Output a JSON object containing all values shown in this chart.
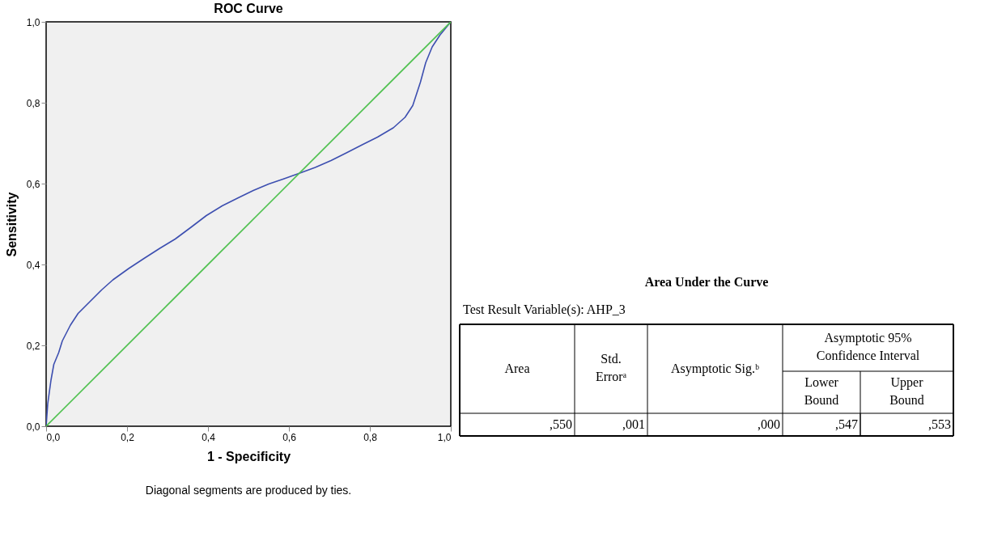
{
  "chart_data": [
    {
      "type": "line",
      "title": "ROC Curve",
      "xlabel": "1 - Specificity",
      "ylabel": "Sensitivity",
      "xlim": [
        0,
        1
      ],
      "ylim": [
        0,
        1
      ],
      "xticks": [
        {
          "value": 0,
          "label": "0,0"
        },
        {
          "value": 0.2,
          "label": "0,2"
        },
        {
          "value": 0.4,
          "label": "0,4"
        },
        {
          "value": 0.6,
          "label": "0,6"
        },
        {
          "value": 0.8,
          "label": "0,8"
        },
        {
          "value": 1,
          "label": "1,0"
        }
      ],
      "yticks": [
        {
          "value": 0,
          "label": "0,0"
        },
        {
          "value": 0.2,
          "label": "0,2"
        },
        {
          "value": 0.4,
          "label": "0,4"
        },
        {
          "value": 0.6,
          "label": "0,6"
        },
        {
          "value": 0.8,
          "label": "0,8"
        },
        {
          "value": 1,
          "label": "1,0"
        }
      ],
      "grid": false,
      "line_style": "solid",
      "series": [
        {
          "color": "#3d4fb0",
          "x": [
            0,
            0.004,
            0.012,
            0.019,
            0.031,
            0.04,
            0.06,
            0.079,
            0.108,
            0.137,
            0.165,
            0.204,
            0.242,
            0.281,
            0.319,
            0.358,
            0.396,
            0.435,
            0.473,
            0.512,
            0.55,
            0.588,
            0.627,
            0.665,
            0.704,
            0.742,
            0.781,
            0.819,
            0.858,
            0.887,
            0.906,
            0.925,
            0.938,
            0.954,
            0.973,
            1
          ],
          "values": [
            0,
            0.056,
            0.114,
            0.153,
            0.182,
            0.211,
            0.25,
            0.279,
            0.308,
            0.337,
            0.362,
            0.39,
            0.415,
            0.44,
            0.463,
            0.492,
            0.521,
            0.545,
            0.564,
            0.583,
            0.599,
            0.612,
            0.626,
            0.64,
            0.657,
            0.676,
            0.696,
            0.715,
            0.738,
            0.764,
            0.793,
            0.851,
            0.899,
            0.938,
            0.967,
            1
          ]
        },
        {
          "color": "#4fc14f",
          "x": [
            0,
            1
          ],
          "values": [
            0,
            1
          ]
        }
      ],
      "annotations": [
        "Diagonal segments are produced by ties."
      ]
    },
    {
      "type": "other",
      "title": "Area Under the Curve",
      "subtitle": "Test Result Variable(s):   AHP_3",
      "annotations": [
        "Area",
        "Std. Errorᵃ",
        "Asymptotic Sig.ᵇ",
        "Asymptotic 95% Confidence Interval",
        "Lower Bound",
        "Upper Bound",
        ",550",
        ",001",
        ",000",
        ",547",
        ",553"
      ]
    }
  ]
}
